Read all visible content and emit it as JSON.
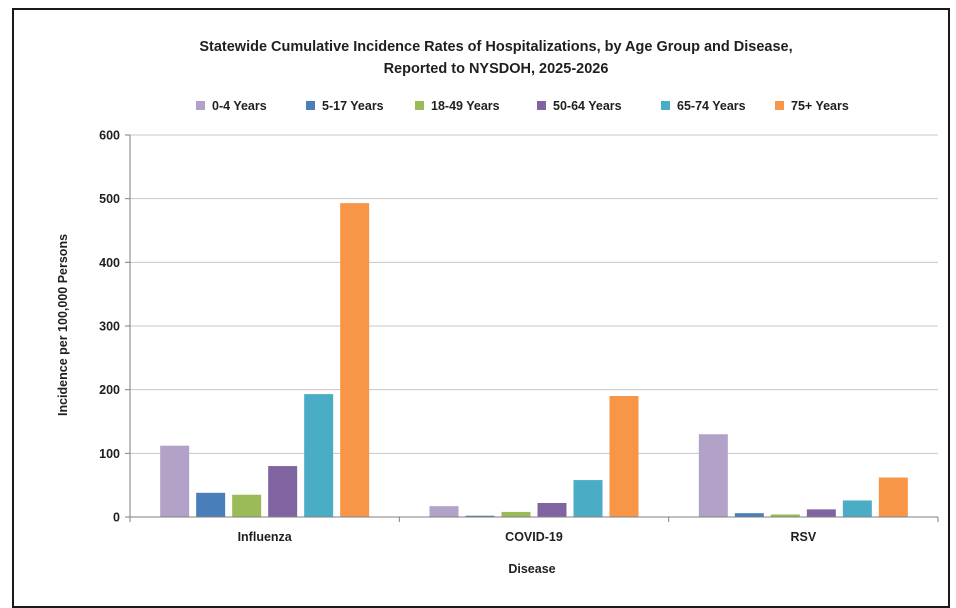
{
  "chart_data": {
    "type": "bar",
    "title": "Statewide Cumulative Incidence Rates of Hospitalizations, by Age Group and Disease,",
    "subtitle": "Reported to NYSDOH, 2025-2026",
    "xlabel": "Disease",
    "ylabel": "Incidence per 100,000 Persons",
    "categories": [
      "Influenza",
      "COVID-19",
      "RSV"
    ],
    "ylim": [
      0,
      600
    ],
    "yticks": [
      0,
      100,
      200,
      300,
      400,
      500,
      600
    ],
    "grid": true,
    "legend_position": "top",
    "series": [
      {
        "name": "0-4 Years",
        "color": "#b3a2c8",
        "values": [
          112,
          17,
          130
        ]
      },
      {
        "name": "5-17 Years",
        "color": "#4a7ebb",
        "values": [
          38,
          2,
          6
        ]
      },
      {
        "name": "18-49 Years",
        "color": "#9bbb59",
        "values": [
          35,
          8,
          4
        ]
      },
      {
        "name": "50-64 Years",
        "color": "#8064a2",
        "values": [
          80,
          22,
          12
        ]
      },
      {
        "name": "65-74 Years",
        "color": "#4bacc6",
        "values": [
          193,
          58,
          26
        ]
      },
      {
        "name": "75+ Years",
        "color": "#f79646",
        "values": [
          493,
          190,
          62
        ]
      }
    ]
  }
}
